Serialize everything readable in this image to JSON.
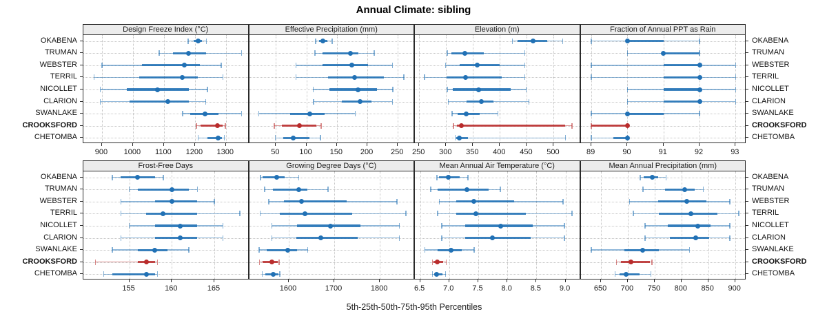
{
  "title": "Annual Climate: sibling",
  "xlabel": "5th-25th-50th-75th-95th Percentiles",
  "categories": [
    "OKABENA",
    "TRUMAN",
    "WEBSTER",
    "TERRIL",
    "NICOLLET",
    "CLARION",
    "SWANLAKE",
    "CROOKSFORD",
    "CHETOMBA"
  ],
  "highlight_category": "CROOKSFORD",
  "colors": {
    "series": "#2171b5",
    "highlight": "#b92c2c",
    "strip_bg": "#ececec",
    "border": "#2a2a2a",
    "grid": "#c4c4c4",
    "text": "#1a1a1a"
  },
  "chart_data": {
    "type": "dot-whisker-trellis",
    "percentiles": [
      "5th",
      "25th",
      "50th",
      "75th",
      "95th"
    ],
    "grid": true,
    "layout": {
      "rows": 2,
      "cols": 4
    },
    "panels": [
      {
        "title": "Design Freeze Index (°C)",
        "ticks": [
          900,
          1000,
          1100,
          1200,
          1300
        ],
        "tick_labels": [
          "900",
          "1000",
          "1100",
          "1200",
          "1300"
        ],
        "xlim": [
          840,
          1375
        ],
        "values": [
          [
            1178,
            1195,
            1210,
            1223,
            1237
          ],
          [
            1085,
            1130,
            1180,
            1235,
            1350
          ],
          [
            900,
            1030,
            1165,
            1215,
            1285
          ],
          [
            875,
            1020,
            1160,
            1210,
            1290
          ],
          [
            895,
            980,
            1080,
            1180,
            1240
          ],
          [
            895,
            990,
            1112,
            1180,
            1235
          ],
          [
            1160,
            1185,
            1232,
            1275,
            1350
          ],
          [
            1205,
            1218,
            1272,
            1290,
            1298
          ],
          [
            1210,
            1240,
            1275,
            1288,
            1295
          ]
        ]
      },
      {
        "title": "Effective Precipitation (mm)",
        "ticks": [
          50,
          100,
          150,
          200,
          250
        ],
        "tick_labels": [
          "50",
          "100",
          "150",
          "200",
          "250"
        ],
        "xlim": [
          6,
          278
        ],
        "values": [
          [
            115,
            121,
            127,
            134,
            142
          ],
          [
            114,
            127,
            172,
            185,
            211
          ],
          [
            83,
            127,
            174,
            201,
            241
          ],
          [
            83,
            136,
            179,
            227,
            260
          ],
          [
            111,
            138,
            185,
            216,
            242
          ],
          [
            112,
            158,
            188,
            207,
            241
          ],
          [
            22,
            73,
            106,
            130,
            180
          ],
          [
            47,
            60,
            89,
            116,
            124
          ],
          [
            49,
            62,
            78,
            105,
            123
          ]
        ]
      },
      {
        "title": "Elevation (m)",
        "ticks": [
          250,
          300,
          350,
          400,
          450,
          500
        ],
        "tick_labels": [
          "250",
          "300",
          "350",
          "400",
          "450",
          "500"
        ],
        "xlim": [
          242,
          550
        ],
        "values": [
          [
            423,
            433,
            462,
            488,
            517
          ],
          [
            302,
            310,
            335,
            370,
            446
          ],
          [
            299,
            325,
            358,
            400,
            446
          ],
          [
            260,
            301,
            336,
            403,
            446
          ],
          [
            302,
            312,
            361,
            420,
            449
          ],
          [
            304,
            338,
            365,
            388,
            454
          ],
          [
            311,
            321,
            337,
            362,
            396
          ],
          [
            314,
            320,
            328,
            521,
            534
          ],
          [
            317,
            319,
            325,
            340,
            522
          ]
        ]
      },
      {
        "title": "Fraction of Annual PPT as Rain",
        "ticks": [
          89,
          90,
          91,
          92,
          93
        ],
        "tick_labels": [
          "89",
          "90",
          "91",
          "92",
          "93"
        ],
        "xlim": [
          88.7,
          93.3
        ],
        "values": [
          [
            89,
            90,
            90,
            91,
            92
          ],
          [
            90,
            91,
            91,
            92,
            92
          ],
          [
            89,
            91,
            92,
            92,
            93
          ],
          [
            89,
            91,
            92,
            92,
            93
          ],
          [
            90,
            91,
            92,
            92,
            93
          ],
          [
            90,
            91,
            92,
            92,
            93
          ],
          [
            89,
            90,
            90,
            91,
            92
          ],
          [
            89,
            89,
            90,
            90,
            90
          ],
          [
            89,
            89.6,
            90,
            90,
            90
          ]
        ]
      },
      {
        "title": "Frost-Free Days",
        "ticks": [
          155,
          160,
          165
        ],
        "tick_labels": [
          "155",
          "160",
          "165"
        ],
        "xlim": [
          149.6,
          169.1
        ],
        "values": [
          [
            153,
            154,
            156,
            158,
            159
          ],
          [
            155,
            156,
            160,
            162,
            163
          ],
          [
            154,
            158,
            160,
            163,
            165
          ],
          [
            154,
            157,
            159,
            163,
            168
          ],
          [
            155,
            158,
            161,
            163,
            166
          ],
          [
            154,
            158,
            161,
            163,
            166
          ],
          [
            153,
            156,
            158,
            159.5,
            162
          ],
          [
            151,
            156,
            157,
            158,
            158.3
          ],
          [
            152,
            153,
            157,
            158,
            158.3
          ]
        ]
      },
      {
        "title": "Growing Degree Days (°C)",
        "ticks": [
          1600,
          1700,
          1800
        ],
        "tick_labels": [
          "1600",
          "1700",
          "1800"
        ],
        "xlim": [
          1513,
          1877
        ],
        "values": [
          [
            1538,
            1542,
            1573,
            1591,
            1622
          ],
          [
            1547,
            1565,
            1622,
            1641,
            1686
          ],
          [
            1556,
            1590,
            1628,
            1727,
            1838
          ],
          [
            1537,
            1580,
            1636,
            1739,
            1857
          ],
          [
            1563,
            1618,
            1692,
            1757,
            1843
          ],
          [
            1563,
            1616,
            1671,
            1752,
            1843
          ],
          [
            1535,
            1552,
            1598,
            1618,
            1642
          ],
          [
            1536,
            1542,
            1563,
            1576,
            1579
          ],
          [
            1542,
            1549,
            1566,
            1577,
            1580
          ]
        ]
      },
      {
        "title": "Mean Annual Air Temperature (°C)",
        "ticks": [
          6.5,
          7.0,
          7.5,
          8.0,
          8.5,
          9.0
        ],
        "tick_labels": [
          "6.5",
          "7.0",
          "7.5",
          "8.0",
          "8.5",
          "9.0"
        ],
        "xlim": [
          6.41,
          9.26
        ],
        "values": [
          [
            6.79,
            6.83,
            6.99,
            7.18,
            7.32
          ],
          [
            6.68,
            6.8,
            7.31,
            7.68,
            7.88
          ],
          [
            6.83,
            7.12,
            7.42,
            8.12,
            8.96
          ],
          [
            6.8,
            7.12,
            7.46,
            8.32,
            9.11
          ],
          [
            6.87,
            7.28,
            7.88,
            8.44,
            8.98
          ],
          [
            6.87,
            7.28,
            7.74,
            8.4,
            8.98
          ],
          [
            6.58,
            6.8,
            7.03,
            7.22,
            7.43
          ],
          [
            6.71,
            6.73,
            6.79,
            6.9,
            6.95
          ],
          [
            6.71,
            6.74,
            6.78,
            6.88,
            6.94
          ]
        ]
      },
      {
        "title": "Mean Annual Precipitation (mm)",
        "ticks": [
          650,
          700,
          750,
          800,
          850,
          900
        ],
        "tick_labels": [
          "650",
          "700",
          "750",
          "800",
          "850",
          "900"
        ],
        "xlim": [
          612,
          921
        ],
        "values": [
          [
            723,
            730,
            745,
            756,
            771
          ],
          [
            728,
            769,
            806,
            825,
            841
          ],
          [
            703,
            756,
            810,
            847,
            890
          ],
          [
            710,
            758,
            818,
            867,
            907
          ],
          [
            732,
            774,
            830,
            854,
            890
          ],
          [
            732,
            778,
            827,
            851,
            890
          ],
          [
            632,
            693,
            728,
            758,
            815
          ],
          [
            679,
            687,
            706,
            741,
            745
          ],
          [
            676,
            685,
            697,
            722,
            743
          ]
        ]
      }
    ]
  }
}
